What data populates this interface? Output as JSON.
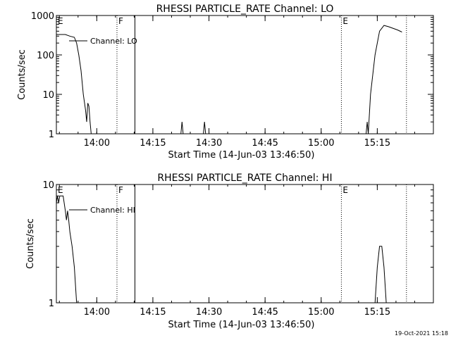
{
  "footer": {
    "timestamp": "19-Oct-2021 15:18"
  },
  "chart_data": [
    {
      "type": "line",
      "title": "RHESSI PARTICLE_RATE Channel: LO",
      "xlabel": "Start Time (14-Jun-03 13:46:50)",
      "ylabel": "Counts/sec",
      "yscale": "log",
      "xlim": [
        13.82,
        15.5
      ],
      "ylim": [
        1,
        1000
      ],
      "xticks": [
        {
          "value": 14.0,
          "label": "14:00"
        },
        {
          "value": 14.25,
          "label": "14:15"
        },
        {
          "value": 14.5,
          "label": "14:30"
        },
        {
          "value": 14.75,
          "label": "14:45"
        },
        {
          "value": 15.0,
          "label": "15:00"
        },
        {
          "value": 15.25,
          "label": "15:15"
        }
      ],
      "yticks": [
        {
          "value": 1,
          "label": "1"
        },
        {
          "value": 10,
          "label": "10"
        },
        {
          "value": 100,
          "label": "100"
        },
        {
          "value": 1000,
          "label": "1000"
        }
      ],
      "legend": "Channel: LO",
      "series": [
        {
          "name": "Channel: LO",
          "segments": [
            [
              [
                13.82,
                330
              ],
              [
                13.86,
                330
              ],
              [
                13.88,
                300
              ],
              [
                13.9,
                280
              ],
              [
                13.91,
                200
              ],
              [
                13.92,
                100
              ],
              [
                13.93,
                40
              ],
              [
                13.94,
                10
              ],
              [
                13.95,
                4
              ],
              [
                13.955,
                2
              ],
              [
                13.96,
                6
              ],
              [
                13.965,
                5
              ],
              [
                13.97,
                2
              ],
              [
                13.975,
                1
              ]
            ],
            [
              [
                14.375,
                1
              ],
              [
                14.38,
                2
              ],
              [
                14.385,
                1
              ]
            ],
            [
              [
                14.475,
                1
              ],
              [
                14.48,
                2
              ],
              [
                14.485,
                1
              ]
            ],
            [
              [
                15.2,
                1
              ],
              [
                15.205,
                2
              ],
              [
                15.21,
                1
              ],
              [
                15.22,
                10
              ],
              [
                15.24,
                100
              ],
              [
                15.26,
                400
              ],
              [
                15.28,
                560
              ],
              [
                15.3,
                520
              ],
              [
                15.34,
                430
              ],
              [
                15.36,
                380
              ]
            ]
          ]
        }
      ],
      "markers": [
        {
          "label": "E",
          "value": 13.82,
          "style": "dotted"
        },
        {
          "label": "F",
          "value": 14.09,
          "style": "dotted"
        },
        {
          "label": "",
          "value": 14.17,
          "style": "solid"
        },
        {
          "label": "E",
          "value": 15.09,
          "style": "dotted"
        },
        {
          "label": "",
          "value": 15.38,
          "style": "dotted"
        }
      ]
    },
    {
      "type": "line",
      "title": "RHESSI PARTICLE_RATE Channel: HI",
      "xlabel": "Start Time (14-Jun-03 13:46:50)",
      "ylabel": "Counts/sec",
      "yscale": "log",
      "xlim": [
        13.82,
        15.5
      ],
      "ylim": [
        1,
        10
      ],
      "xticks": [
        {
          "value": 14.0,
          "label": "14:00"
        },
        {
          "value": 14.25,
          "label": "14:15"
        },
        {
          "value": 14.5,
          "label": "14:30"
        },
        {
          "value": 14.75,
          "label": "14:45"
        },
        {
          "value": 15.0,
          "label": "15:00"
        },
        {
          "value": 15.25,
          "label": "15:15"
        }
      ],
      "yticks": [
        {
          "value": 1,
          "label": "1"
        },
        {
          "value": 10,
          "label": "10"
        }
      ],
      "legend": "Channel: HI",
      "series": [
        {
          "name": "Channel: HI",
          "segments": [
            [
              [
                13.82,
                7
              ],
              [
                13.825,
                8
              ],
              [
                13.83,
                7
              ],
              [
                13.835,
                8
              ],
              [
                13.84,
                8
              ],
              [
                13.85,
                8
              ],
              [
                13.86,
                6
              ],
              [
                13.865,
                5
              ],
              [
                13.87,
                6
              ],
              [
                13.875,
                5
              ],
              [
                13.88,
                4
              ],
              [
                13.89,
                3
              ],
              [
                13.9,
                2
              ],
              [
                13.91,
                1
              ]
            ],
            [
              [
                15.24,
                1
              ],
              [
                15.25,
                2
              ],
              [
                15.26,
                3
              ],
              [
                15.27,
                3
              ],
              [
                15.28,
                2
              ],
              [
                15.29,
                1
              ]
            ]
          ]
        }
      ],
      "markers": [
        {
          "label": "E",
          "value": 13.82,
          "style": "dotted"
        },
        {
          "label": "F",
          "value": 14.09,
          "style": "dotted"
        },
        {
          "label": "",
          "value": 14.17,
          "style": "solid"
        },
        {
          "label": "E",
          "value": 15.09,
          "style": "dotted"
        },
        {
          "label": "",
          "value": 15.38,
          "style": "dotted"
        }
      ]
    }
  ]
}
